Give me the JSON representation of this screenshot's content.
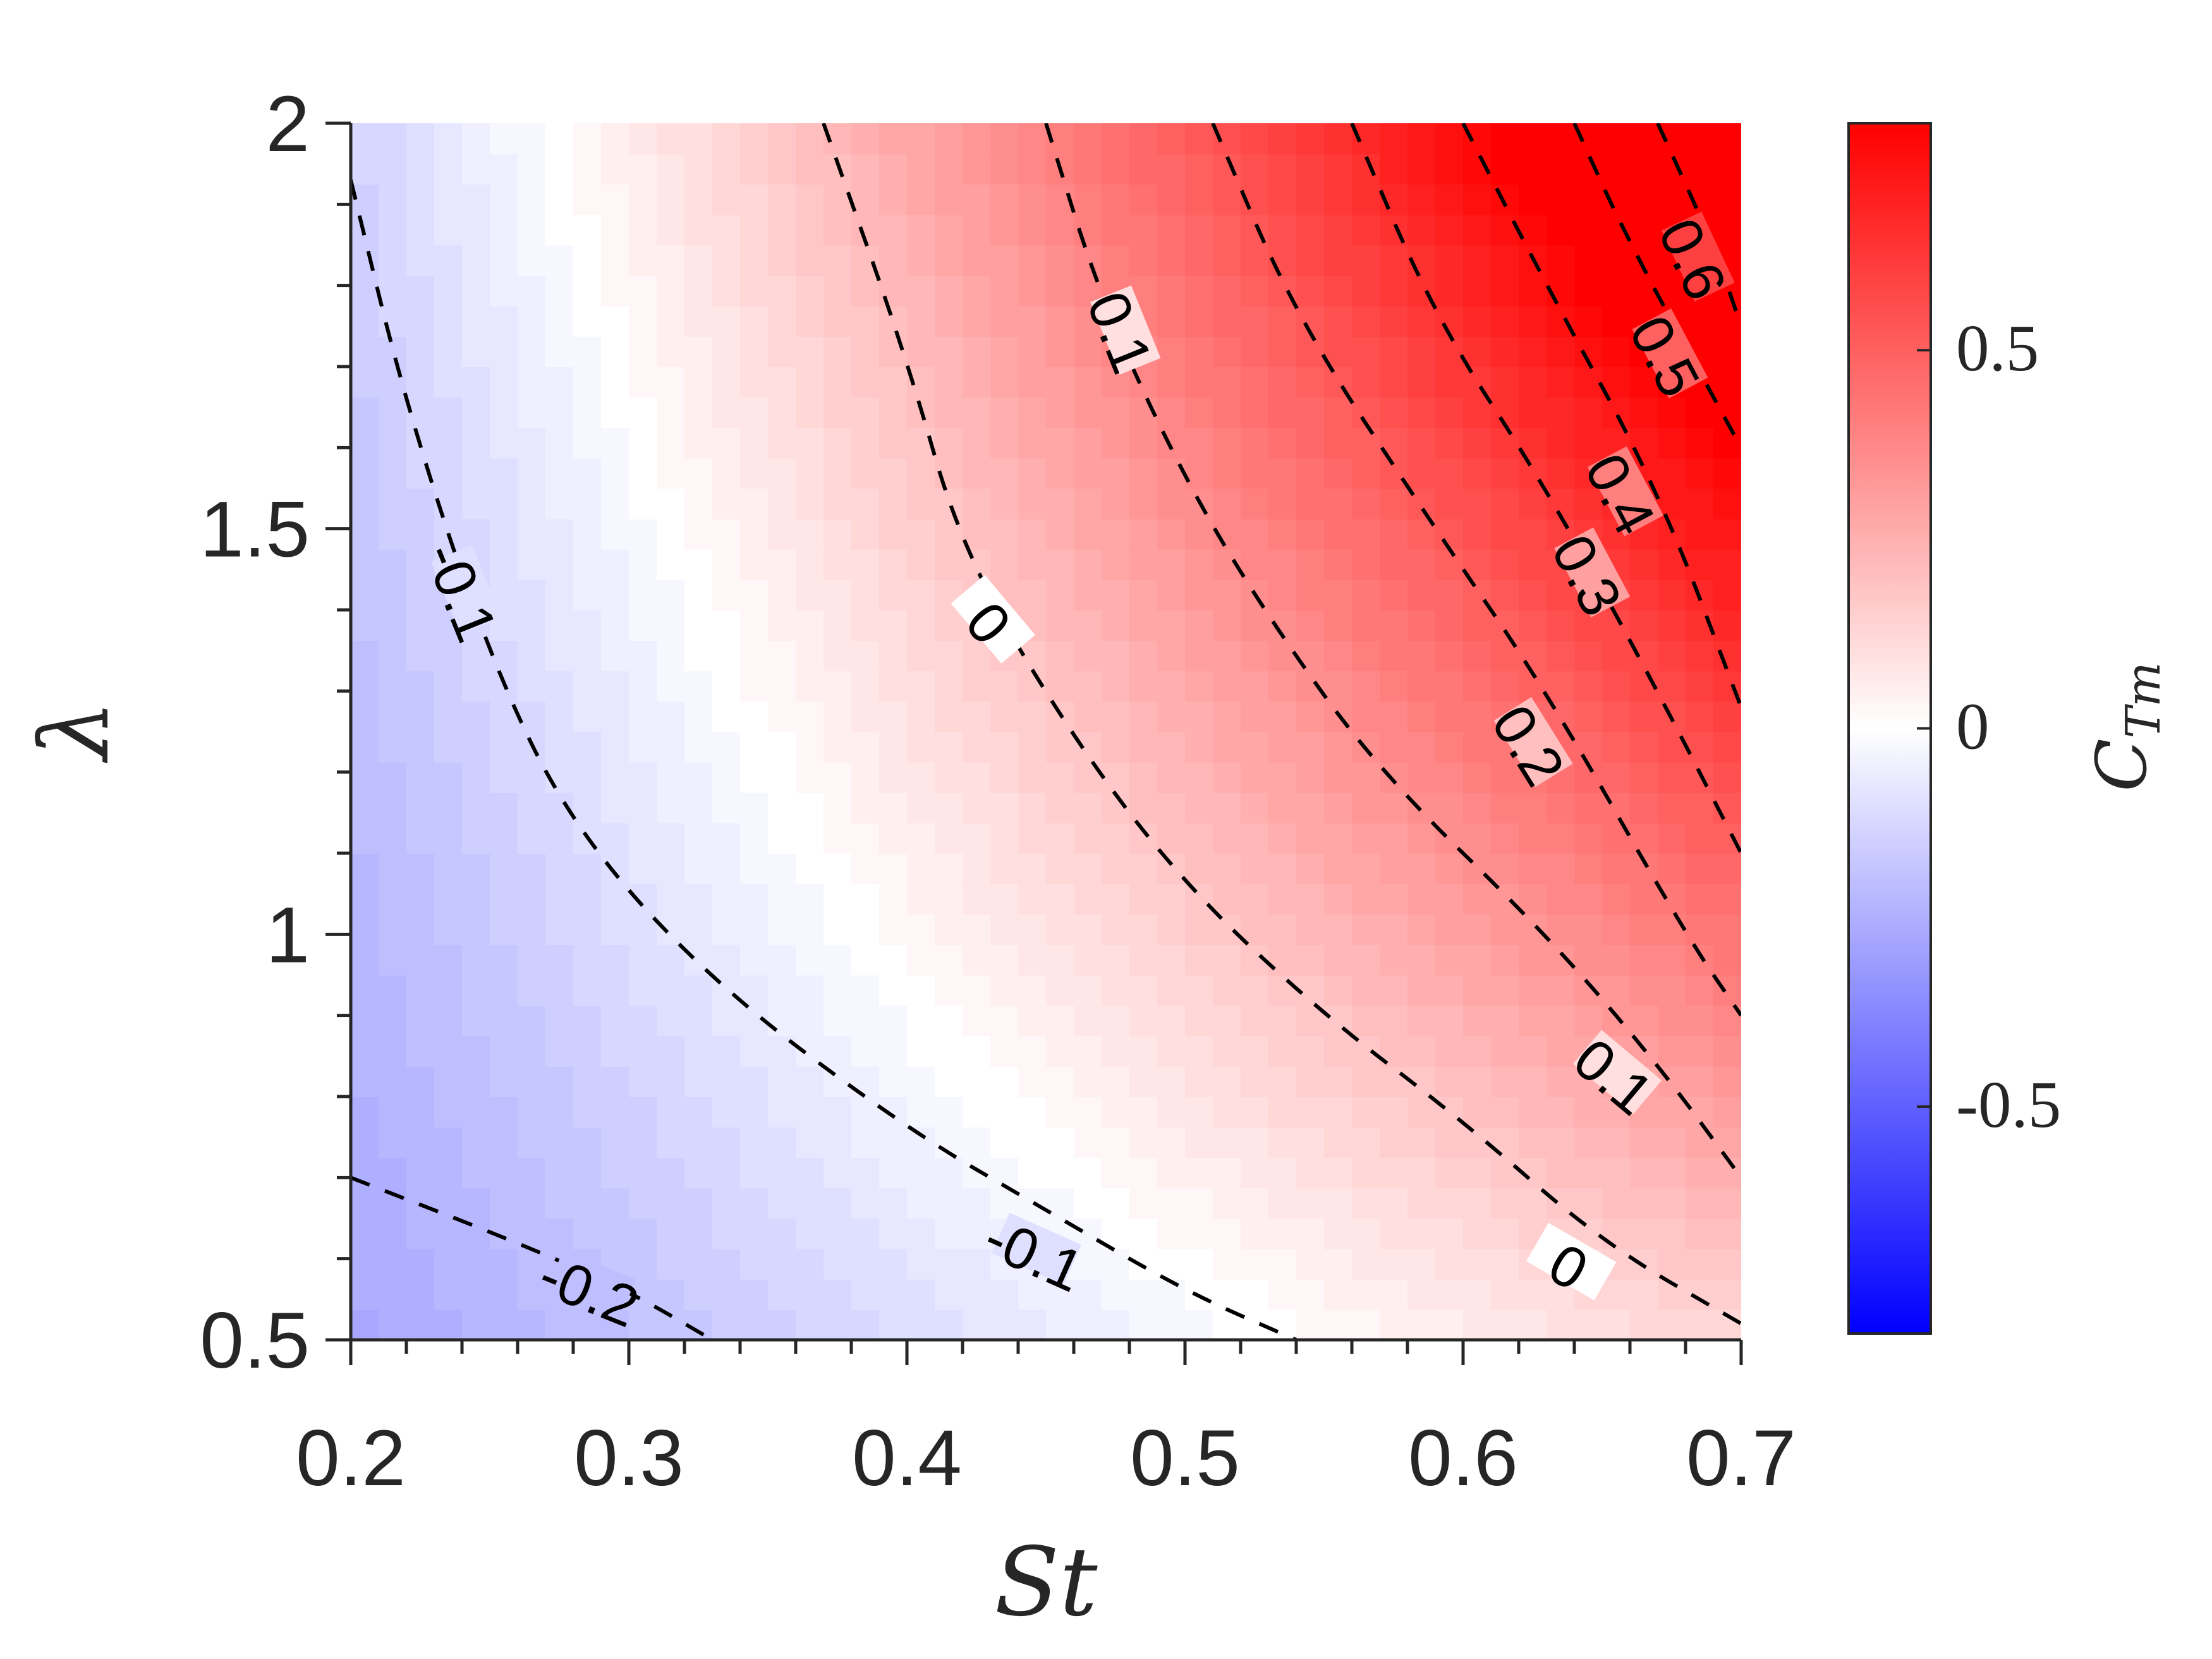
{
  "chart_data": {
    "type": "heatmap",
    "subtype": "filled-contour",
    "title": "",
    "xlabel": "St",
    "ylabel": "λ",
    "xlim": [
      0.2,
      0.7
    ],
    "ylim": [
      0.5,
      2
    ],
    "xticks": [
      {
        "value": 0.2,
        "label": "0.2"
      },
      {
        "value": 0.3,
        "label": "0.3"
      },
      {
        "value": 0.4,
        "label": "0.4"
      },
      {
        "value": 0.5,
        "label": "0.5"
      },
      {
        "value": 0.6,
        "label": "0.6"
      },
      {
        "value": 0.7,
        "label": "0.7"
      }
    ],
    "yticks": [
      {
        "value": 0.5,
        "label": "0.5"
      },
      {
        "value": 1.0,
        "label": "1"
      },
      {
        "value": 1.5,
        "label": "1.5"
      },
      {
        "value": 2.0,
        "label": "2"
      }
    ],
    "grid": false,
    "colorbar": {
      "label": "C_Tm",
      "label_main": "C",
      "label_sub": "Tm",
      "range": [
        -0.8,
        0.8
      ],
      "colormap": [
        "#0000ff",
        "#ffffff",
        "#ff0000"
      ],
      "ticks": [
        {
          "value": -0.5,
          "label": "-0.5"
        },
        {
          "value": 0,
          "label": "0"
        },
        {
          "value": 0.5,
          "label": "0.5"
        }
      ]
    },
    "contours": [
      {
        "level": -0.2,
        "label": "-0.2",
        "points": [
          [
            0.2,
            0.7
          ],
          [
            0.26,
            0.62
          ],
          [
            0.3,
            0.56
          ],
          [
            0.33,
            0.5
          ]
        ],
        "label_at": [
          0.285,
          0.555
        ],
        "label_angle": 22
      },
      {
        "level": -0.1,
        "label": "-0.1",
        "points": [
          [
            0.2,
            1.93
          ],
          [
            0.22,
            1.65
          ],
          [
            0.25,
            1.34
          ],
          [
            0.28,
            1.13
          ],
          [
            0.33,
            0.94
          ],
          [
            0.4,
            0.76
          ],
          [
            0.45,
            0.66
          ],
          [
            0.5,
            0.56
          ],
          [
            0.54,
            0.5
          ]
        ],
        "label_at": [
          0.445,
          0.6
        ],
        "label_angle": 24,
        "label2_at": [
          0.238,
          1.42
        ],
        "label2_angle": 68
      },
      {
        "level": 0,
        "label": "0",
        "points": [
          [
            0.37,
            2.0
          ],
          [
            0.4,
            1.71
          ],
          [
            0.42,
            1.47
          ],
          [
            0.46,
            1.24
          ],
          [
            0.5,
            1.06
          ],
          [
            0.55,
            0.9
          ],
          [
            0.6,
            0.77
          ],
          [
            0.65,
            0.62
          ],
          [
            0.7,
            0.52
          ]
        ],
        "label_at": [
          0.637,
          0.585
        ],
        "label_angle": 30,
        "label2_at": [
          0.428,
          1.38
        ],
        "label2_angle": 50
      },
      {
        "level": 0.1,
        "label": "0.1",
        "points": [
          [
            0.45,
            2.0
          ],
          [
            0.47,
            1.78
          ],
          [
            0.5,
            1.56
          ],
          [
            0.53,
            1.39
          ],
          [
            0.57,
            1.2
          ],
          [
            0.63,
            1.0
          ],
          [
            0.67,
            0.84
          ],
          [
            0.7,
            0.7
          ]
        ],
        "label_at": [
          0.653,
          0.82
        ],
        "label_angle": 40,
        "label2_at": [
          0.475,
          1.74
        ],
        "label2_angle": 68
      },
      {
        "level": 0.2,
        "label": "0.2",
        "points": [
          [
            0.51,
            2.0
          ],
          [
            0.54,
            1.76
          ],
          [
            0.59,
            1.5
          ],
          [
            0.63,
            1.3
          ],
          [
            0.68,
            1.0
          ],
          [
            0.7,
            0.9
          ]
        ],
        "label_at": [
          0.622,
          1.23
        ],
        "label_angle": 58
      },
      {
        "level": 0.3,
        "label": "0.3",
        "points": [
          [
            0.56,
            2.0
          ],
          [
            0.59,
            1.76
          ],
          [
            0.63,
            1.55
          ],
          [
            0.67,
            1.3
          ],
          [
            0.7,
            1.1
          ]
        ],
        "label_at": [
          0.643,
          1.44
        ],
        "label_angle": 62
      },
      {
        "level": 0.4,
        "label": "0.4",
        "points": [
          [
            0.6,
            2.0
          ],
          [
            0.63,
            1.8
          ],
          [
            0.67,
            1.55
          ],
          [
            0.7,
            1.28
          ]
        ],
        "label_at": [
          0.655,
          1.54
        ],
        "label_angle": 62
      },
      {
        "level": 0.5,
        "label": "0.5",
        "points": [
          [
            0.64,
            2.0
          ],
          [
            0.66,
            1.85
          ],
          [
            0.7,
            1.6
          ]
        ],
        "label_at": [
          0.671,
          1.71
        ],
        "label_angle": 62
      },
      {
        "level": 0.6,
        "label": "0.6",
        "points": [
          [
            0.67,
            2.0
          ],
          [
            0.69,
            1.85
          ],
          [
            0.7,
            1.75
          ]
        ],
        "label_at": [
          0.681,
          1.83
        ],
        "label_angle": 65
      }
    ]
  }
}
